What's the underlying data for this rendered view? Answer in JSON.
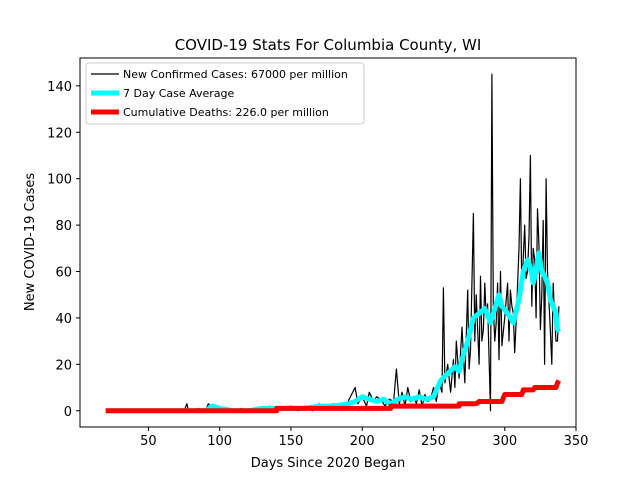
{
  "chart_data": {
    "type": "line",
    "title": "COVID-19 Stats For Columbia County, WI",
    "xlabel": "Days Since 2020 Began",
    "ylabel": "New COVID-19 Cases",
    "xlim": [
      2,
      350
    ],
    "ylim": [
      -7,
      152
    ],
    "xticks": [
      50,
      100,
      150,
      200,
      250,
      300,
      350
    ],
    "yticks": [
      0,
      20,
      40,
      60,
      80,
      100,
      120,
      140
    ],
    "legend_position": "top-left",
    "series": [
      {
        "name": "New Confirmed Cases: 67000 per million",
        "color": "#000000",
        "points": [
          [
            20,
            0
          ],
          [
            40,
            0
          ],
          [
            60,
            0
          ],
          [
            70,
            0
          ],
          [
            75,
            0
          ],
          [
            77,
            3
          ],
          [
            78,
            0
          ],
          [
            85,
            1
          ],
          [
            90,
            0
          ],
          [
            92,
            3
          ],
          [
            95,
            1
          ],
          [
            98,
            0
          ],
          [
            105,
            1
          ],
          [
            110,
            0
          ],
          [
            115,
            1
          ],
          [
            120,
            0
          ],
          [
            125,
            1
          ],
          [
            130,
            0
          ],
          [
            135,
            2
          ],
          [
            140,
            0
          ],
          [
            145,
            1
          ],
          [
            150,
            2
          ],
          [
            155,
            0
          ],
          [
            160,
            2
          ],
          [
            165,
            0
          ],
          [
            170,
            3
          ],
          [
            172,
            1
          ],
          [
            175,
            2
          ],
          [
            180,
            3
          ],
          [
            185,
            1
          ],
          [
            190,
            4
          ],
          [
            195,
            10
          ],
          [
            197,
            3
          ],
          [
            200,
            6
          ],
          [
            203,
            2
          ],
          [
            205,
            8
          ],
          [
            208,
            4
          ],
          [
            210,
            6
          ],
          [
            213,
            5
          ],
          [
            216,
            2
          ],
          [
            219,
            5
          ],
          [
            222,
            4
          ],
          [
            224,
            18
          ],
          [
            226,
            3
          ],
          [
            228,
            8
          ],
          [
            230,
            2
          ],
          [
            232,
            10
          ],
          [
            234,
            4
          ],
          [
            236,
            6
          ],
          [
            238,
            3
          ],
          [
            240,
            9
          ],
          [
            242,
            2
          ],
          [
            244,
            7
          ],
          [
            246,
            4
          ],
          [
            248,
            5
          ],
          [
            250,
            10
          ],
          [
            252,
            4
          ],
          [
            254,
            12
          ],
          [
            256,
            8
          ],
          [
            257,
            53
          ],
          [
            258,
            12
          ],
          [
            260,
            20
          ],
          [
            262,
            8
          ],
          [
            264,
            22
          ],
          [
            265,
            10
          ],
          [
            266,
            30
          ],
          [
            268,
            14
          ],
          [
            270,
            36
          ],
          [
            272,
            12
          ],
          [
            274,
            52
          ],
          [
            275,
            18
          ],
          [
            276,
            26
          ],
          [
            278,
            85
          ],
          [
            279,
            30
          ],
          [
            280,
            50
          ],
          [
            282,
            20
          ],
          [
            283,
            58
          ],
          [
            284,
            30
          ],
          [
            285,
            35
          ],
          [
            286,
            55
          ],
          [
            287,
            40
          ],
          [
            288,
            46
          ],
          [
            289,
            22
          ],
          [
            290,
            0
          ],
          [
            291,
            145
          ],
          [
            292,
            45
          ],
          [
            293,
            30
          ],
          [
            294,
            38
          ],
          [
            295,
            55
          ],
          [
            296,
            22
          ],
          [
            297,
            60
          ],
          [
            298,
            28
          ],
          [
            300,
            40
          ],
          [
            302,
            55
          ],
          [
            303,
            30
          ],
          [
            304,
            52
          ],
          [
            305,
            45
          ],
          [
            306,
            42
          ],
          [
            307,
            25
          ],
          [
            308,
            38
          ],
          [
            310,
            70
          ],
          [
            311,
            100
          ],
          [
            312,
            52
          ],
          [
            314,
            80
          ],
          [
            315,
            57
          ],
          [
            316,
            60
          ],
          [
            317,
            75
          ],
          [
            318,
            110
          ],
          [
            319,
            45
          ],
          [
            320,
            70
          ],
          [
            321,
            65
          ],
          [
            322,
            40
          ],
          [
            323,
            87
          ],
          [
            324,
            72
          ],
          [
            325,
            35
          ],
          [
            326,
            50
          ],
          [
            327,
            82
          ],
          [
            328,
            20
          ],
          [
            329,
            100
          ],
          [
            330,
            60
          ],
          [
            332,
            35
          ],
          [
            333,
            20
          ],
          [
            334,
            55
          ],
          [
            335,
            40
          ],
          [
            336,
            30
          ],
          [
            337,
            30
          ],
          [
            338,
            45
          ]
        ]
      },
      {
        "name": "7 Day Case Average",
        "color": "#00ffff",
        "points": [
          [
            20,
            0
          ],
          [
            60,
            0
          ],
          [
            80,
            0
          ],
          [
            90,
            0
          ],
          [
            95,
            2
          ],
          [
            100,
            1
          ],
          [
            110,
            0
          ],
          [
            120,
            0
          ],
          [
            130,
            1
          ],
          [
            140,
            1
          ],
          [
            150,
            1
          ],
          [
            160,
            1
          ],
          [
            170,
            2
          ],
          [
            180,
            2
          ],
          [
            190,
            3
          ],
          [
            195,
            4
          ],
          [
            200,
            6
          ],
          [
            205,
            5
          ],
          [
            210,
            4
          ],
          [
            215,
            5
          ],
          [
            220,
            3
          ],
          [
            225,
            5
          ],
          [
            230,
            6
          ],
          [
            235,
            5
          ],
          [
            240,
            6
          ],
          [
            245,
            5
          ],
          [
            250,
            6
          ],
          [
            255,
            13
          ],
          [
            260,
            16
          ],
          [
            265,
            19
          ],
          [
            268,
            17
          ],
          [
            270,
            22
          ],
          [
            274,
            30
          ],
          [
            278,
            40
          ],
          [
            282,
            42
          ],
          [
            286,
            44
          ],
          [
            290,
            38
          ],
          [
            294,
            46
          ],
          [
            296,
            50
          ],
          [
            298,
            45
          ],
          [
            302,
            42
          ],
          [
            306,
            38
          ],
          [
            310,
            48
          ],
          [
            313,
            60
          ],
          [
            316,
            65
          ],
          [
            318,
            62
          ],
          [
            320,
            55
          ],
          [
            322,
            60
          ],
          [
            324,
            68
          ],
          [
            326,
            60
          ],
          [
            328,
            58
          ],
          [
            330,
            55
          ],
          [
            332,
            48
          ],
          [
            334,
            45
          ],
          [
            336,
            42
          ],
          [
            337,
            35
          ],
          [
            338,
            34
          ]
        ]
      },
      {
        "name": "Cumulative Deaths: 226.0 per million",
        "color": "#ff0000",
        "points": [
          [
            20,
            0
          ],
          [
            140,
            0
          ],
          [
            140,
            1
          ],
          [
            220,
            1
          ],
          [
            220,
            2
          ],
          [
            268,
            2
          ],
          [
            268,
            3
          ],
          [
            280,
            3
          ],
          [
            282,
            4
          ],
          [
            298,
            4
          ],
          [
            300,
            7
          ],
          [
            312,
            7
          ],
          [
            313,
            9
          ],
          [
            320,
            9
          ],
          [
            321,
            10
          ],
          [
            336,
            10
          ],
          [
            337,
            12
          ],
          [
            338,
            13
          ]
        ]
      }
    ]
  }
}
